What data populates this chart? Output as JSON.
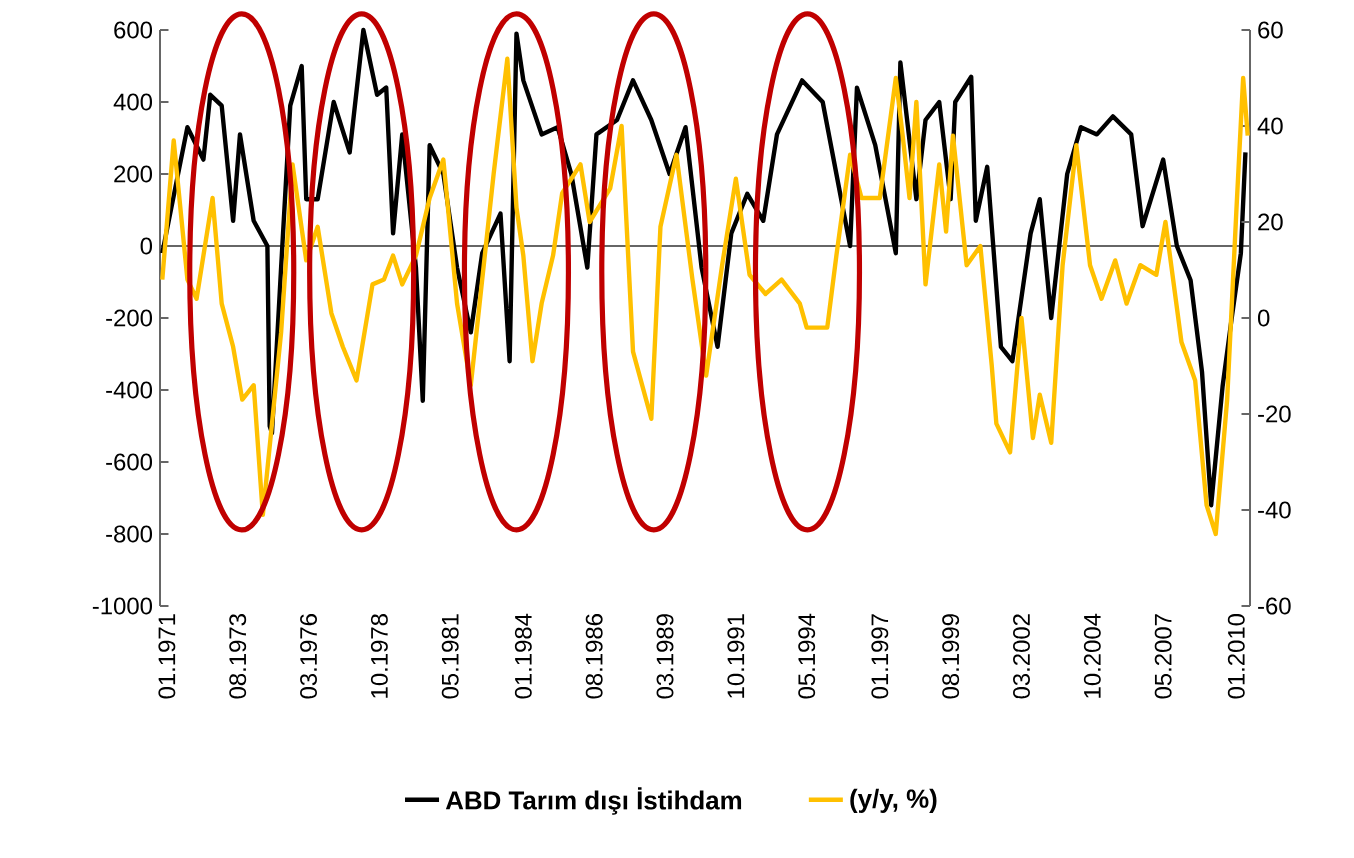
{
  "chart_data": {
    "type": "line",
    "legend": "bottom",
    "xlim": [
      "1970-10",
      "2010-07"
    ],
    "xticks": [
      {
        "value": "1971-01",
        "label": "01.1971"
      },
      {
        "value": "1973-08",
        "label": "08.1973"
      },
      {
        "value": "1976-03",
        "label": "03.1976"
      },
      {
        "value": "1978-10",
        "label": "10.1978"
      },
      {
        "value": "1981-05",
        "label": "05.1981"
      },
      {
        "value": "1984-01",
        "label": "01.1984"
      },
      {
        "value": "1986-08",
        "label": "08.1986"
      },
      {
        "value": "1989-03",
        "label": "03.1989"
      },
      {
        "value": "1991-10",
        "label": "10.1991"
      },
      {
        "value": "1994-05",
        "label": "05.1994"
      },
      {
        "value": "1997-01",
        "label": "01.1997"
      },
      {
        "value": "1999-08",
        "label": "08.1999"
      },
      {
        "value": "2002-03",
        "label": "03.2002"
      },
      {
        "value": "2004-10",
        "label": "10.2004"
      },
      {
        "value": "2007-05",
        "label": "05.2007"
      },
      {
        "value": "2010-01",
        "label": "01.2010"
      }
    ],
    "ylim": [
      -1000,
      600
    ],
    "yticks": [
      -1000,
      -800,
      -600,
      -400,
      -200,
      0,
      200,
      400,
      600
    ],
    "y2lim": [
      -60,
      60
    ],
    "y2ticks": [
      -60,
      -40,
      -20,
      0,
      20,
      40,
      60
    ],
    "series": [
      {
        "name": "ABD Tarım dışı İstihdam",
        "color": "#000000",
        "x": [
          "1970-11",
          "1971-10",
          "1972-05",
          "1972-08",
          "1973-01",
          "1973-06",
          "1973-09",
          "1974-03",
          "1974-09",
          "1974-10",
          "1974-11",
          "1975-03",
          "1975-07",
          "1975-12",
          "1976-02",
          "1976-07",
          "1977-02",
          "1977-09",
          "1978-03",
          "1978-09",
          "1979-01",
          "1979-04",
          "1979-08",
          "1980-02",
          "1980-05",
          "1980-08",
          "1981-02",
          "1981-08",
          "1982-02",
          "1982-07",
          "1983-03",
          "1983-07",
          "1983-10",
          "1984-01",
          "1984-09",
          "1985-04",
          "1985-10",
          "1986-05",
          "1986-09",
          "1987-06",
          "1988-01",
          "1988-09",
          "1989-05",
          "1989-12",
          "1990-07",
          "1991-02",
          "1991-08",
          "1992-03",
          "1992-10",
          "1993-04",
          "1994-03",
          "1994-12",
          "1995-06",
          "1995-12",
          "1996-03",
          "1996-11",
          "1997-08",
          "1997-10",
          "1998-05",
          "1998-09",
          "1999-03",
          "1999-08",
          "1999-10",
          "2000-05",
          "2000-07",
          "2000-12",
          "2001-06",
          "2001-11",
          "2002-07",
          "2002-11",
          "2003-04",
          "2003-11",
          "2004-05",
          "2004-12",
          "2005-07",
          "2006-03",
          "2006-08",
          "2007-05",
          "2007-11",
          "2008-05",
          "2008-10",
          "2009-02",
          "2009-07",
          "2009-11",
          "2010-03",
          "2010-05"
        ],
        "values": [
          -20,
          330,
          240,
          420,
          390,
          70,
          310,
          70,
          0,
          -500,
          -520,
          -60,
          390,
          500,
          130,
          130,
          400,
          260,
          600,
          420,
          440,
          35,
          310,
          -60,
          -430,
          280,
          200,
          -60,
          -240,
          -20,
          90,
          -320,
          590,
          460,
          310,
          330,
          200,
          -60,
          310,
          350,
          460,
          350,
          200,
          330,
          -60,
          -280,
          35,
          145,
          70,
          310,
          460,
          400,
          200,
          0,
          440,
          280,
          -20,
          510,
          130,
          350,
          400,
          130,
          400,
          470,
          70,
          220,
          -280,
          -320,
          35,
          130,
          -200,
          200,
          330,
          310,
          360,
          310,
          55,
          240,
          0,
          -95,
          -350,
          -720,
          -390,
          -200,
          -20,
          260
        ]
      },
      {
        "name": "(y/y, %)",
        "color": "#ffc000",
        "axis": "y2",
        "x": [
          "1970-11",
          "1971-04",
          "1971-10",
          "1972-02",
          "1972-09",
          "1973-01",
          "1973-06",
          "1973-10",
          "1974-03",
          "1974-07",
          "1975-03",
          "1975-08",
          "1976-02",
          "1976-07",
          "1977-01",
          "1977-06",
          "1977-12",
          "1978-07",
          "1978-12",
          "1979-04",
          "1979-08",
          "1980-02",
          "1980-08",
          "1981-02",
          "1981-08",
          "1982-02",
          "1982-07",
          "1982-12",
          "1983-06",
          "1983-10",
          "1984-01",
          "1984-05",
          "1984-09",
          "1985-02",
          "1985-06",
          "1986-02",
          "1986-06",
          "1987-03",
          "1987-08",
          "1988-01",
          "1988-09",
          "1989-01",
          "1989-08",
          "1990-03",
          "1990-09",
          "1991-04",
          "1991-10",
          "1992-04",
          "1992-11",
          "1993-06",
          "1994-02",
          "1994-05",
          "1995-02",
          "1995-06",
          "1995-12",
          "1996-05",
          "1997-01",
          "1997-08",
          "1997-11",
          "1998-02",
          "1998-05",
          "1998-09",
          "1999-03",
          "1999-06",
          "1999-09",
          "2000-03",
          "2000-09",
          "2001-02",
          "2001-04",
          "2001-10",
          "2002-03",
          "2002-08",
          "2002-11",
          "2003-04",
          "2003-09",
          "2004-03",
          "2004-09",
          "2005-02",
          "2005-08",
          "2006-01",
          "2006-07",
          "2007-02",
          "2007-06",
          "2008-01",
          "2008-07",
          "2008-12",
          "2009-04",
          "2009-09",
          "2010-01",
          "2010-04",
          "2010-06"
        ],
        "values": [
          8,
          37,
          8,
          4,
          25,
          3,
          -6,
          -17,
          -14,
          -41,
          -3,
          32,
          12,
          19,
          1,
          -6,
          -13,
          7,
          8,
          13,
          7,
          13,
          25,
          33,
          3,
          -14,
          8,
          30,
          54,
          23,
          13,
          -9,
          3,
          13,
          26,
          32,
          20,
          27,
          40,
          -7,
          -21,
          19,
          34,
          8,
          -12,
          11,
          29,
          9,
          5,
          8,
          3,
          -2,
          -2,
          13,
          34,
          25,
          25,
          50,
          38,
          25,
          45,
          7,
          32,
          18,
          38,
          11,
          15,
          -10,
          -22,
          -28,
          0,
          -25,
          -16,
          -26,
          11,
          36,
          11,
          4,
          12,
          3,
          11,
          9,
          20,
          -5,
          -13,
          -39,
          -45,
          -17,
          22,
          50,
          38
        ]
      }
    ]
  }
}
